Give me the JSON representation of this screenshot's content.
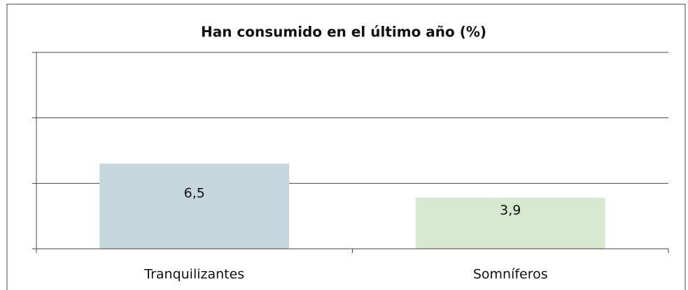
{
  "chart_data": {
    "type": "bar",
    "title": "Han consumido en el último año (%)",
    "categories": [
      "Tranquilizantes",
      "Somníferos"
    ],
    "values": [
      6.5,
      3.9
    ],
    "value_labels": [
      "6,5",
      "3,9"
    ],
    "colors": [
      "#c5d7dc",
      "#d7ead0"
    ],
    "ylim": [
      0,
      15
    ],
    "yticks": [
      0,
      5,
      10,
      15
    ],
    "grid": true
  }
}
